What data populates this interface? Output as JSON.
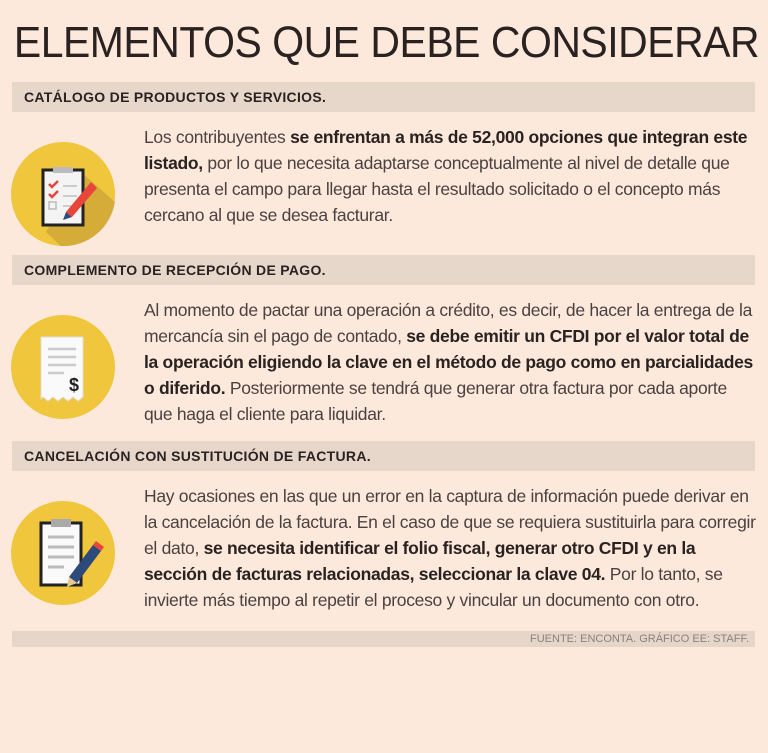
{
  "title": "ELEMENTOS QUE DEBE CONSIDERAR",
  "sections": [
    {
      "heading": "CATÁLOGO DE PRODUCTOS Y SERVICIOS.",
      "icon": "checklist-clipboard-pen-icon",
      "segments": [
        {
          "t": " Los contribuyentes ",
          "b": false
        },
        {
          "t": "se enfrentan a más de 52,000 opciones que integran este listado,",
          "b": true
        },
        {
          "t": " por lo que necesita adaptarse conceptualmente al nivel de detalle que presenta el campo para llegar hasta el resultado solicitado o el concepto más cercano al que se desea facturar.",
          "b": false
        }
      ]
    },
    {
      "heading": "COMPLEMENTO DE RECEPCIÓN DE PAGO.",
      "icon": "receipt-dollar-icon",
      "segments": [
        {
          "t": " Al momento de pactar una operación a crédito, es decir, de hacer la entrega de la mercancía sin el pago de contado, ",
          "b": false
        },
        {
          "t": "se debe emitir un CFDI por el valor total de la operación eligiendo la clave en el método de pago como en parcialidades o diferido.",
          "b": true
        },
        {
          "t": " Posteriormente se tendrá que generar otra factura por cada aporte que haga el cliente para liquidar.",
          "b": false
        }
      ]
    },
    {
      "heading": "CANCELACIÓN CON SUSTITUCIÓN DE FACTURA.",
      "icon": "clipboard-signing-pencil-icon",
      "segments": [
        {
          "t": " Hay ocasiones en las que un error en la captura de información puede derivar en la cancelación de la factura. En el caso de que se requiera sustituirla para corregir el dato, ",
          "b": false
        },
        {
          "t": "se necesita identificar el folio fiscal, generar otro CFDI y en la sección de facturas relacionadas, seleccionar la clave 04.",
          "b": true
        },
        {
          "t": " Por lo tanto, se invierte más tiempo al repetir el proceso y vincular un documento con otro.",
          "b": false
        }
      ]
    }
  ],
  "footer": "FUENTE: ENCONTA.  GRÁFICO EE: STAFF.",
  "colors": {
    "background": "#fde9dc",
    "bar": "#e7d7cb",
    "icon_circle": "#f0c63c",
    "accent_red": "#e8463a",
    "pencil_blue": "#2d4a7a"
  }
}
